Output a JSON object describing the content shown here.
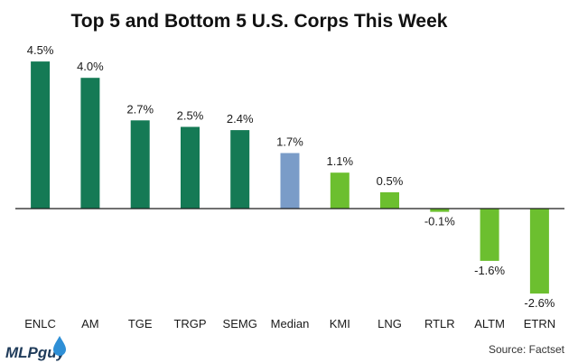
{
  "chart_data": {
    "type": "bar",
    "title": "Top 5 and Bottom 5 U.S. Corps This Week",
    "categories": [
      "ENLC",
      "AM",
      "TGE",
      "TRGP",
      "SEMG",
      "Median",
      "KMI",
      "LNG",
      "RTLR",
      "ALTM",
      "ETRN"
    ],
    "values": [
      4.5,
      4.0,
      2.7,
      2.5,
      2.4,
      1.7,
      1.1,
      0.5,
      -0.1,
      -1.6,
      -2.6
    ],
    "data_labels": [
      "4.5%",
      "4.0%",
      "2.7%",
      "2.5%",
      "2.4%",
      "1.7%",
      "1.1%",
      "0.5%",
      "-0.1%",
      "-1.6%",
      "-2.6%"
    ],
    "bar_colors": [
      "#157a55",
      "#157a55",
      "#157a55",
      "#157a55",
      "#157a55",
      "#7a9cc8",
      "#6cbf2f",
      "#6cbf2f",
      "#6cbf2f",
      "#6cbf2f",
      "#6cbf2f"
    ],
    "xlabel": "",
    "ylabel": "",
    "ylim": [
      -2.8,
      4.5
    ],
    "grid": false
  },
  "branding": {
    "logo_text": "MLPguy",
    "logo_icon": "water-drop-icon",
    "source": "Source: Factset"
  },
  "colors": {
    "top_bar": "#157a55",
    "median_bar": "#7a9cc8",
    "bottom_bar": "#6cbf2f",
    "axis": "#1a1a1a",
    "logo_drop": "#2e8fd6"
  }
}
